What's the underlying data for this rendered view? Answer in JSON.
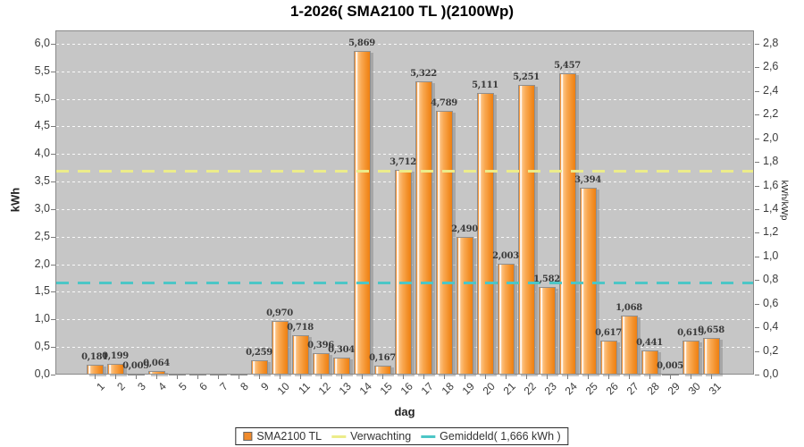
{
  "chart_data": {
    "type": "bar",
    "title": "1-2026( SMA2100 TL )(2100Wp)",
    "x": {
      "title": "dag",
      "ticks": [
        "1",
        "2",
        "3",
        "4",
        "5",
        "6",
        "7",
        "8",
        "9",
        "10",
        "11",
        "12",
        "13",
        "14",
        "15",
        "16",
        "17",
        "18",
        "19",
        "20",
        "21",
        "22",
        "23",
        "24",
        "25",
        "26",
        "27",
        "28",
        "29",
        "30",
        "31"
      ]
    },
    "y_left": {
      "title": "kWh",
      "min": 0.0,
      "max": 6.0,
      "step": 0.5,
      "ticks": [
        "0,0",
        "0,5",
        "1,0",
        "1,5",
        "2,0",
        "2,5",
        "3,0",
        "3,5",
        "4,0",
        "4,5",
        "5,0",
        "5,5",
        "6,0"
      ]
    },
    "y_right": {
      "title": "kWh/kWp",
      "min": 0.0,
      "max": 2.8,
      "step": 0.2,
      "ticks": [
        "0,0",
        "0,2",
        "0,4",
        "0,6",
        "0,8",
        "1,0",
        "1,2",
        "1,4",
        "1,6",
        "1,8",
        "2,0",
        "2,2",
        "2,4",
        "2,6",
        "2,8"
      ]
    },
    "series": [
      {
        "name": "SMA2100 TL",
        "values": [
          0.181,
          0.199,
          0.009,
          0.064,
          0.0,
          0.0,
          0.0,
          0.0,
          0.259,
          0.97,
          0.718,
          0.396,
          0.304,
          5.869,
          0.167,
          3.712,
          5.322,
          4.789,
          2.49,
          5.111,
          2.003,
          5.251,
          1.582,
          5.457,
          3.394,
          0.617,
          1.068,
          0.441,
          0.005,
          0.619,
          0.658
        ],
        "labels": [
          "0,181",
          "0,199",
          "0,009",
          "0,064",
          "",
          "",
          "",
          "",
          "0,259",
          "0,970",
          "0,718",
          "0,396",
          "0,304",
          "5,869",
          "0,167",
          "3,712",
          "5,322",
          "4,789",
          "2,490",
          "5,111",
          "2,003",
          "5,251",
          "1,582",
          "5,457",
          "3,394",
          "0,617",
          "1,068",
          "0,441",
          "0,005",
          "0,619",
          "0,658"
        ]
      }
    ],
    "reference_lines": [
      {
        "id": "verwachting",
        "label": "Verwachting",
        "value_kwh": 3.7,
        "color": "#ecec8a"
      },
      {
        "id": "gemiddeld",
        "label": "Gemiddeld( 1,666 kWh )",
        "value_kwh": 1.666,
        "color": "#4cc6c6"
      }
    ],
    "legend": [
      {
        "label": "SMA2100 TL",
        "type": "box",
        "color": "#f08a2b"
      },
      {
        "label": "Verwachting",
        "type": "line",
        "color": "#ecec8a"
      },
      {
        "label": "Gemiddeld( 1,666 kWh )",
        "type": "line",
        "color": "#4cc6c6"
      }
    ],
    "grid": "horizontal-dashed-white",
    "legend_position": "bottom-center"
  },
  "colors": {
    "plot_background": "#c6c6c6",
    "gridline": "#ffffff",
    "bar_fill": "#f79d47",
    "bar_fill_dark": "#ee7f12",
    "bar_border": "#8f8f8f",
    "verwachting_line": "#ecec8a",
    "gemiddeld_line": "#4cc6c6",
    "title_text": "#000000",
    "tick_text": "#3c3c3c"
  }
}
